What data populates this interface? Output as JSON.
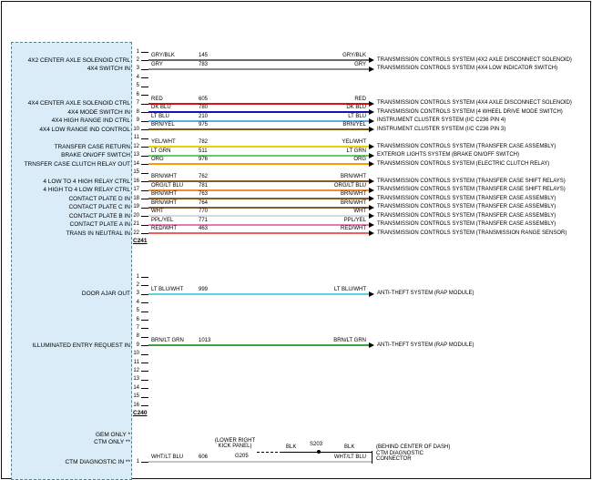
{
  "connectors": [
    {
      "name": "C241",
      "pin_count": 22,
      "rows": [
        {
          "pin": 2,
          "label": "4X2 CENTER AXLE SOLENOID CTRL",
          "wire": "GRY/BLK",
          "circuit": "145",
          "hex": "#6b6b6b",
          "dest": "TRANSMISSION CONTROLS SYSTEM (4X2 AXLE DISCONNECT SOLENOID)"
        },
        {
          "pin": 3,
          "label": "4X4 SWITCH IN",
          "wire": "GRY",
          "circuit": "783",
          "hex": "#8c8c8c",
          "dest": "TRANSMISSION CONTROLS SYSTEM (4X4 LOW INDICATOR SWITCH)"
        },
        {
          "pin": 7,
          "label": "4X4 CENTER AXLE SOLENOID CTRL",
          "wire": "RED",
          "circuit": "605",
          "hex": "#e01010",
          "dest": "TRANSMISSION CONTROLS SYSTEM (4X4 AXLE DISCONNECT SOLENOID)"
        },
        {
          "pin": 8,
          "label": "4X4 MODE SWITCH IN",
          "wire": "DK BLU",
          "circuit": "780",
          "hex": "#1515b0",
          "dest": "TRANSMISSION CONTROLS SYSTEM (4 WHEEL DRIVE MODE SWITCH)"
        },
        {
          "pin": 9,
          "label": "4X4 HIGH RANGE IND CTRL",
          "wire": "LT BLU",
          "circuit": "210",
          "hex": "#58aee8",
          "dest": "INSTRUMENT CLUSTER SYSTEM (I/C C236 PIN 4)"
        },
        {
          "pin": 10,
          "label": "4X4 LOW RANGE IND CONTROL",
          "wire": "BRN/YEL",
          "circuit": "975",
          "hex": "#7d5f10",
          "dest": "INSTRUMENT CLUSTER SYSTEM (I/C C236 PIN 3)"
        },
        {
          "pin": 12,
          "label": "TRANSFER CASE RETURN",
          "wire": "YEL/WHT",
          "circuit": "782",
          "hex": "#e6d400",
          "dest": "TRANSMISSION CONTROLS SYSTEM (TRANSFER CASE ASSEMBLY)"
        },
        {
          "pin": 13,
          "label": "BRAKE ON/OFF SWITCH",
          "wire": "LT GRN",
          "circuit": "511",
          "hex": "#66cc66",
          "dest": "EXTERIOR LIGHTS SYSTEM (BRAKE ON/OFF SWITCH)"
        },
        {
          "pin": 14,
          "label": "TRNSFER CASE CLUTCH RELAY OUT",
          "wire": "ORG",
          "circuit": "976",
          "hex": "#ff9900",
          "dest": "TRANSMISSION CONTROLS SYSTEM (ELECTRIC CLUTCH RELAY)"
        },
        {
          "pin": 16,
          "label": "4 LOW TO 4 HIGH RELAY CTRL",
          "wire": "BRN/WHT",
          "circuit": "762",
          "hex": "#8a5a28",
          "dest": "TRANSMISSION CONTROLS SYSTEM (TRANSFER CASE SHIFT RELAYS)"
        },
        {
          "pin": 17,
          "label": "4 HIGH TO 4 LOW RELAY CTRL",
          "wire": "ORG/LT BLU",
          "circuit": "781",
          "hex": "#f09030",
          "dest": "TRANSMISSION CONTROLS SYSTEM (TRANSFER CASE SHIFT RELAYS)"
        },
        {
          "pin": 18,
          "label": "CONTACT PLATE D IN",
          "wire": "BRN/WHT",
          "circuit": "763",
          "hex": "#8a5a28",
          "dest": "TRANSMISSION CONTROLS SYSTEM (TRANSFER CASE ASSEMBLY)"
        },
        {
          "pin": 19,
          "label": "CONTACT PLATE C IN",
          "wire": "BRN/WHT",
          "circuit": "764",
          "hex": "#8a5a28",
          "dest": "TRANSMISSION CONTROLS SYSTEM (TRANSFER CASE ASSEMBLY)"
        },
        {
          "pin": 20,
          "label": "CONTACT PLATE B IN",
          "wire": "WHT",
          "circuit": "770",
          "hex": "#d9d9d9",
          "dest": "TRANSMISSION CONTROLS SYSTEM (TRANSFER CASE ASSEMBLY)"
        },
        {
          "pin": 21,
          "label": "CONTACT PLATE A IN",
          "wire": "PPL/YEL",
          "circuit": "771",
          "hex": "#e878b8",
          "dest": "TRANSMISSION CONTROLS SYSTEM (TRANSFER CASE ASSEMBLY)"
        },
        {
          "pin": 22,
          "label": "TRANS IN NEUTRAL IN",
          "wire": "RED/WHT",
          "circuit": "463",
          "hex": "#ef6060",
          "dest": "TRANSMISSION CONTROLS SYSTEM (TRANSMISSION RANGE SENSOR)"
        }
      ]
    },
    {
      "name": "C240",
      "pin_count": 16,
      "rows": [
        {
          "pin": 3,
          "label": "DOOR AJAR OUT",
          "wire": "LT BLU/WHT",
          "circuit": "999",
          "hex": "#5fd0e8",
          "dest": "ANTI-THEFT SYSTEM (RAP MODULE)"
        },
        {
          "pin": 9,
          "label": "ILLUMINATED ENTRY REQUEST IN",
          "wire": "BRN/LT GRN",
          "circuit": "1013",
          "hex": "#3fa03f",
          "dest": "ANTI-THEFT SYSTEM (RAP MODULE)"
        }
      ]
    }
  ],
  "notes": {
    "gem": "GEM ONLY *",
    "ctm": "CTM ONLY **"
  },
  "bottom": {
    "label": "CTM DIAGNOSTIC IN **",
    "pin": "1",
    "wire": "WHT/LT BLU",
    "circuit": "606",
    "hex": "#c4c4c4",
    "right_wire": "WHT/LT BLU",
    "ground_loc_1": "(LOWER RIGHT",
    "ground_loc_2": "KICK PANEL)",
    "ground": "G205",
    "blk_left": "BLK",
    "splice": "S203",
    "blk_right": "BLK",
    "dest_loc": "(BEHIND CENTER OF DASH)",
    "dest_1": "CTM DIAGNOSTIC",
    "dest_2": "CONNECTOR"
  }
}
